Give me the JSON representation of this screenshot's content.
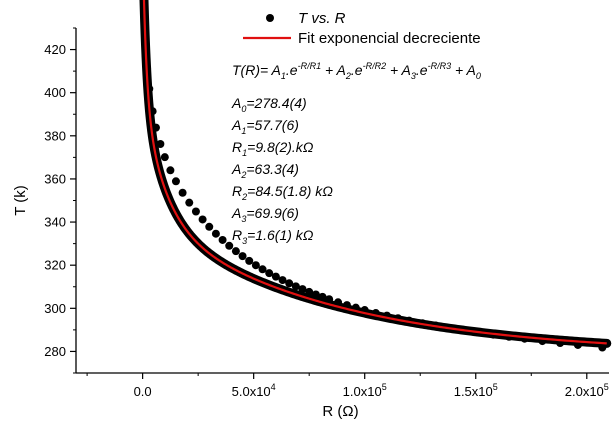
{
  "chart_data": {
    "type": "scatter",
    "title": "",
    "xlabel": "R (Ω)",
    "ylabel": "T (k)",
    "xlim": [
      -30000,
      210000
    ],
    "ylim": [
      270,
      430
    ],
    "x_ticks": [
      {
        "value": 0,
        "label": "0.0"
      },
      {
        "value": 50000,
        "mantissa": "5.0x10",
        "exp": "4"
      },
      {
        "value": 100000,
        "mantissa": "1.0x10",
        "exp": "5"
      },
      {
        "value": 150000,
        "mantissa": "1.5x10",
        "exp": "5"
      },
      {
        "value": 200000,
        "mantissa": "2.0x10",
        "exp": "5"
      }
    ],
    "y_ticks": [
      280,
      300,
      320,
      340,
      360,
      380,
      400,
      420
    ],
    "grid": false,
    "legend_position": "top-right",
    "series": [
      {
        "name": "T vs. R",
        "kind": "scatter",
        "color": "#000000",
        "x": [
          1200,
          2000,
          3000,
          4500,
          6000,
          8000,
          10000,
          12500,
          15000,
          18000,
          21000,
          24000,
          27000,
          30000,
          33000,
          36000,
          39000,
          42000,
          45000,
          48000,
          51000,
          54000,
          57000,
          60000,
          63000,
          66000,
          69000,
          72000,
          75000,
          78000,
          81000,
          84000,
          88000,
          92000,
          96000,
          100000,
          105000,
          110000,
          115000,
          120000,
          126000,
          132000,
          138000,
          144000,
          151000,
          158000,
          165000,
          172000,
          180000,
          188000,
          196000,
          207000
        ],
        "y": [
          423,
          411.3,
          401.8,
          391.4,
          383.8,
          376.2,
          370.1,
          364.0,
          358.9,
          353.6,
          349.0,
          344.9,
          341.2,
          337.8,
          334.6,
          331.7,
          329.0,
          326.5,
          324.2,
          322.0,
          320.0,
          318.1,
          316.3,
          314.7,
          313.1,
          311.6,
          310.2,
          308.9,
          307.6,
          306.4,
          305.3,
          304.2,
          302.8,
          301.5,
          300.3,
          299.2,
          297.8,
          296.6,
          295.4,
          294.3,
          293.1,
          292.0,
          290.9,
          289.9,
          288.8,
          287.8,
          286.8,
          285.9,
          284.8,
          283.9,
          283.0,
          281.8
        ]
      },
      {
        "name": "Fit exponencial decreciente",
        "kind": "line",
        "color": "#e01010",
        "model": {
          "A0": 278.4,
          "A1": 57.7,
          "R1": 9800,
          "A2": 63.3,
          "R2": 84500,
          "A3": 69.9,
          "R3": 1600
        },
        "x_range": [
          0,
          209000
        ]
      }
    ],
    "annotation": {
      "formula": {
        "prefix": "T(R)= A",
        "terms": [
          {
            "sub": "1",
            "mid": ".e",
            "sup": "-R/R1",
            "sep": " + A"
          },
          {
            "sub": "2",
            "mid": ".e",
            "sup": "-R/R2",
            "sep": " + A"
          },
          {
            "sub": "3",
            "mid": ".e",
            "sup": "-R/R3",
            "sep": " + A"
          }
        ],
        "last_sub": "0"
      },
      "params": [
        {
          "main": "A",
          "sub": "0",
          "rest": "=278.4(4)"
        },
        {
          "main": "A",
          "sub": "1",
          "rest": "=57.7(6)"
        },
        {
          "main": "R",
          "sub": "1",
          "rest": "=9.8(2).kΩ"
        },
        {
          "main": "A",
          "sub": "2",
          "rest": "=63.3(4)"
        },
        {
          "main": "R",
          "sub": "2",
          "rest": "=84.5(1.8) kΩ"
        },
        {
          "main": "A",
          "sub": "3",
          "rest": "=69.9(6)"
        },
        {
          "main": "R",
          "sub": "3",
          "rest": "=1.6(1) kΩ"
        }
      ]
    }
  }
}
